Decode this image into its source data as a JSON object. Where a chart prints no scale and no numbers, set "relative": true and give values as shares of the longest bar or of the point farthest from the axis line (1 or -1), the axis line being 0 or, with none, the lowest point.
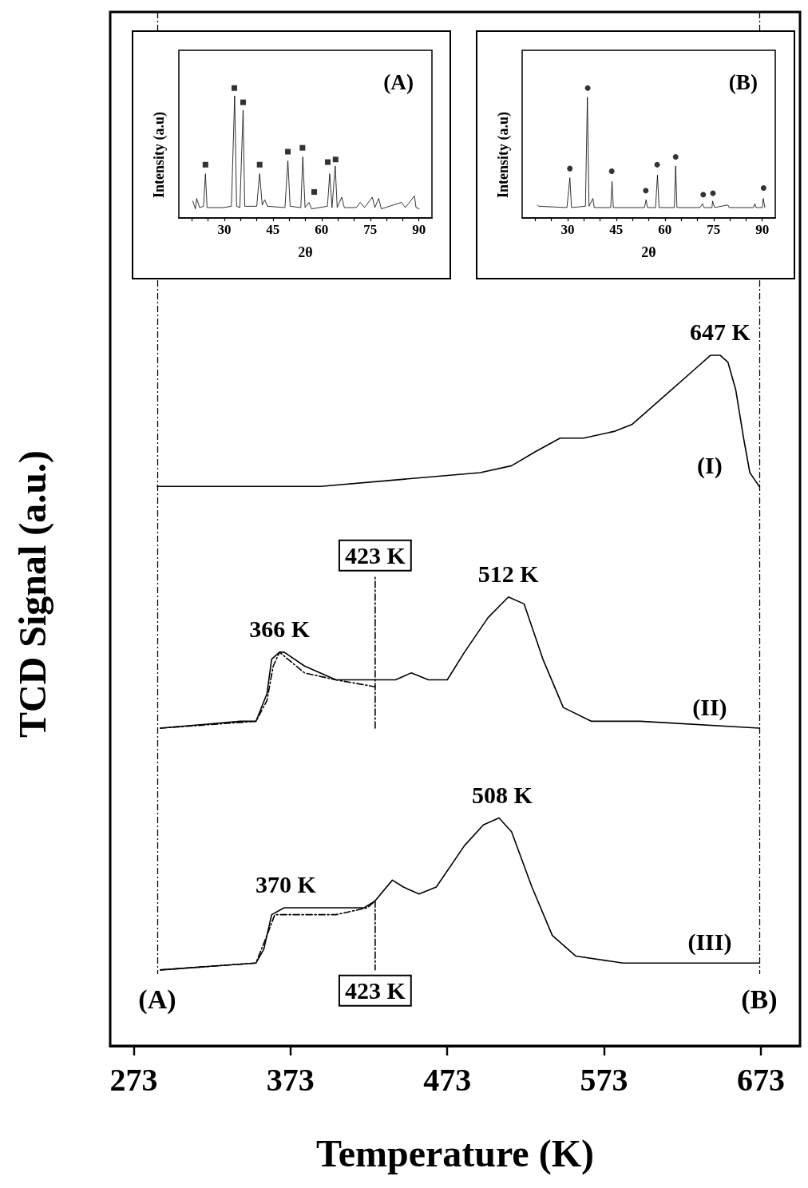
{
  "chart_data": [
    {
      "type": "line",
      "xlabel": "Temperature (K)",
      "ylabel": "TCD Signal (a.u.)",
      "relative": true,
      "marker": "none",
      "xlim": [
        258,
        698
      ],
      "xticks": [
        273,
        373,
        473,
        573,
        673
      ],
      "series": [
        {
          "name": "(I)",
          "color": "#000000",
          "x": [
            288,
            341,
            392,
            443,
            494,
            514,
            529,
            545,
            560,
            580,
            591,
            611,
            631,
            641,
            647,
            652,
            657,
            662,
            666,
            669,
            672
          ],
          "values": [
            0.81,
            0.81,
            0.81,
            0.82,
            0.83,
            0.84,
            0.86,
            0.88,
            0.88,
            0.89,
            0.9,
            0.94,
            0.98,
            1.0,
            1.0,
            0.99,
            0.95,
            0.88,
            0.83,
            0.82,
            0.81
          ]
        },
        {
          "name": "(II)",
          "color": "#000000",
          "x": [
            290,
            341,
            351,
            358,
            361,
            366,
            369,
            382,
            402,
            427,
            440,
            450,
            461,
            473,
            484,
            499,
            512,
            522,
            534,
            547,
            565,
            596,
            672
          ],
          "values": [
            0.46,
            0.47,
            0.47,
            0.51,
            0.56,
            0.57,
            0.57,
            0.55,
            0.53,
            0.53,
            0.53,
            0.54,
            0.53,
            0.53,
            0.57,
            0.62,
            0.65,
            0.64,
            0.56,
            0.49,
            0.47,
            0.47,
            0.46
          ]
        },
        {
          "color": "#000000",
          "line_style": "dashed",
          "x": [
            290,
            351,
            358,
            362,
            366,
            382,
            402,
            427
          ],
          "values": [
            0.46,
            0.47,
            0.5,
            0.55,
            0.57,
            0.54,
            0.53,
            0.52
          ]
        },
        {
          "name": "(III)",
          "color": "#000000",
          "x": [
            290,
            351,
            356,
            361,
            369,
            382,
            402,
            420,
            427,
            438,
            445,
            455,
            466,
            484,
            496,
            506,
            514,
            527,
            540,
            555,
            585,
            672
          ],
          "values": [
            0.11,
            0.12,
            0.14,
            0.19,
            0.2,
            0.2,
            0.2,
            0.2,
            0.21,
            0.24,
            0.23,
            0.22,
            0.23,
            0.29,
            0.32,
            0.33,
            0.31,
            0.23,
            0.16,
            0.13,
            0.12,
            0.12
          ]
        },
        {
          "color": "#000000",
          "line_style": "dashed",
          "x": [
            290,
            351,
            358,
            363,
            371,
            402,
            422,
            427
          ],
          "values": [
            0.11,
            0.12,
            0.16,
            0.19,
            0.19,
            0.19,
            0.2,
            0.21
          ]
        },
        {
          "name": "423 K",
          "color": "#000000",
          "line_style": "dashed",
          "x": [
            427,
            427
          ],
          "values": [
            0.46,
            0.68
          ]
        },
        {
          "name": "423 K",
          "color": "#000000",
          "line_style": "dashed",
          "x": [
            427,
            427
          ],
          "values": [
            0.21,
            0.11
          ]
        }
      ],
      "ref_lines": [
        {
          "axis": "x",
          "value": 288,
          "label": "(A)",
          "line_style": "dashed"
        },
        {
          "axis": "x",
          "value": 672,
          "label": "(B)",
          "line_style": "dashed"
        }
      ],
      "annotations": [
        {
          "text": "647 K",
          "x": 647,
          "y": 1.0
        },
        {
          "text": "512 K",
          "x": 512,
          "y": 0.65
        },
        {
          "text": "366 K",
          "x": 366,
          "y": 0.57
        },
        {
          "text": "508 K",
          "x": 508,
          "y": 0.33
        },
        {
          "text": "370 K",
          "x": 370,
          "y": 0.2
        }
      ]
    },
    {
      "type": "line",
      "title": "(A)",
      "xlabel": "2θ",
      "ylabel": "Intensity (a.u)",
      "relative": true,
      "xlim": [
        16,
        94
      ],
      "xticks": [
        {
          "value": 20,
          "label": null
        },
        {
          "value": 25,
          "label": null
        },
        30,
        {
          "value": 35,
          "label": null
        },
        {
          "value": 40,
          "label": null
        },
        45,
        {
          "value": 50,
          "label": null
        },
        {
          "value": 55,
          "label": null
        },
        60,
        {
          "value": 65,
          "label": null
        },
        {
          "value": 70,
          "label": null
        },
        75,
        {
          "value": 80,
          "label": null
        },
        {
          "value": 85,
          "label": null
        },
        90
      ],
      "series": [
        {
          "color": "#000000",
          "x": [
            20.3,
            21.1,
            21.5,
            22.4,
            23.6,
            24.2,
            24.7,
            29.8,
            32.2,
            33.2,
            33.8,
            34.8,
            35.8,
            36.3,
            40,
            40.9,
            41.7,
            42.5,
            43.3,
            48.7,
            49.6,
            50.3,
            53.6,
            54.2,
            54.9,
            56.1,
            56.9,
            61.8,
            62.5,
            63.2,
            64.2,
            64.8,
            66.2,
            67,
            70.7,
            71.9,
            73.2,
            75.6,
            76.4,
            77.6,
            78.4,
            84.6,
            85.8,
            88.6,
            89.1,
            90.1
          ],
          "values": [
            0.13,
            0.07,
            0.15,
            0.08,
            0.09,
            0.34,
            0.08,
            0.08,
            0.09,
            0.94,
            0.09,
            0.08,
            0.83,
            0.09,
            0.09,
            0.34,
            0.1,
            0.14,
            0.09,
            0.08,
            0.44,
            0.09,
            0.08,
            0.47,
            0.08,
            0.12,
            0.07,
            0.09,
            0.34,
            0.08,
            0.4,
            0.08,
            0.16,
            0.08,
            0.08,
            0.12,
            0.08,
            0.16,
            0.08,
            0.15,
            0.07,
            0.12,
            0.08,
            0.17,
            0.08,
            0.07
          ]
        },
        {
          "type": "scatter",
          "marker": "square",
          "color": "#000000",
          "x": [
            24.2,
            33.1,
            35.8,
            40.9,
            49.6,
            54.1,
            57.7,
            61.9,
            64.3
          ],
          "values": [
            0.41,
            1.0,
            0.89,
            0.41,
            0.51,
            0.54,
            0.2,
            0.43,
            0.45
          ]
        }
      ]
    },
    {
      "type": "line",
      "title": "(B)",
      "xlabel": "2θ",
      "ylabel": "Intensity (a.u)",
      "relative": true,
      "xlim": [
        16,
        94
      ],
      "xticks": [
        {
          "value": 20,
          "label": null
        },
        {
          "value": 25,
          "label": null
        },
        30,
        {
          "value": 35,
          "label": null
        },
        {
          "value": 40,
          "label": null
        },
        45,
        {
          "value": 50,
          "label": null
        },
        {
          "value": 55,
          "label": null
        },
        60,
        {
          "value": 65,
          "label": null
        },
        {
          "value": 70,
          "label": null
        },
        75,
        {
          "value": 80,
          "label": null
        },
        {
          "value": 85,
          "label": null
        },
        90
      ],
      "series": [
        {
          "color": "#000000",
          "x": [
            20.7,
            21.1,
            29.8,
            30.7,
            31.2,
            35.5,
            36.1,
            36.6,
            37.8,
            38.2,
            43.3,
            43.7,
            44.1,
            53.7,
            54.2,
            54.6,
            57.1,
            57.7,
            58.2,
            62.9,
            63.3,
            63.7,
            70.8,
            71.6,
            72,
            74.5,
            74.7,
            75.3,
            79.4,
            79.8,
            87.3,
            87.7,
            88.1,
            90,
            90.3,
            90.8
          ],
          "values": [
            0.1,
            0.09,
            0.08,
            0.31,
            0.08,
            0.09,
            0.93,
            0.09,
            0.15,
            0.08,
            0.08,
            0.28,
            0.08,
            0.08,
            0.14,
            0.08,
            0.08,
            0.33,
            0.08,
            0.08,
            0.4,
            0.08,
            0.08,
            0.11,
            0.08,
            0.08,
            0.13,
            0.08,
            0.1,
            0.08,
            0.08,
            0.11,
            0.08,
            0.08,
            0.15,
            0.08
          ]
        },
        {
          "type": "scatter",
          "marker": "circle",
          "color": "#000000",
          "x": [
            30.7,
            36.2,
            43.6,
            54.1,
            57.6,
            63.3,
            71.8,
            74.8,
            90.4
          ],
          "values": [
            0.38,
            1.0,
            0.36,
            0.21,
            0.41,
            0.47,
            0.18,
            0.19,
            0.23
          ]
        }
      ]
    }
  ]
}
